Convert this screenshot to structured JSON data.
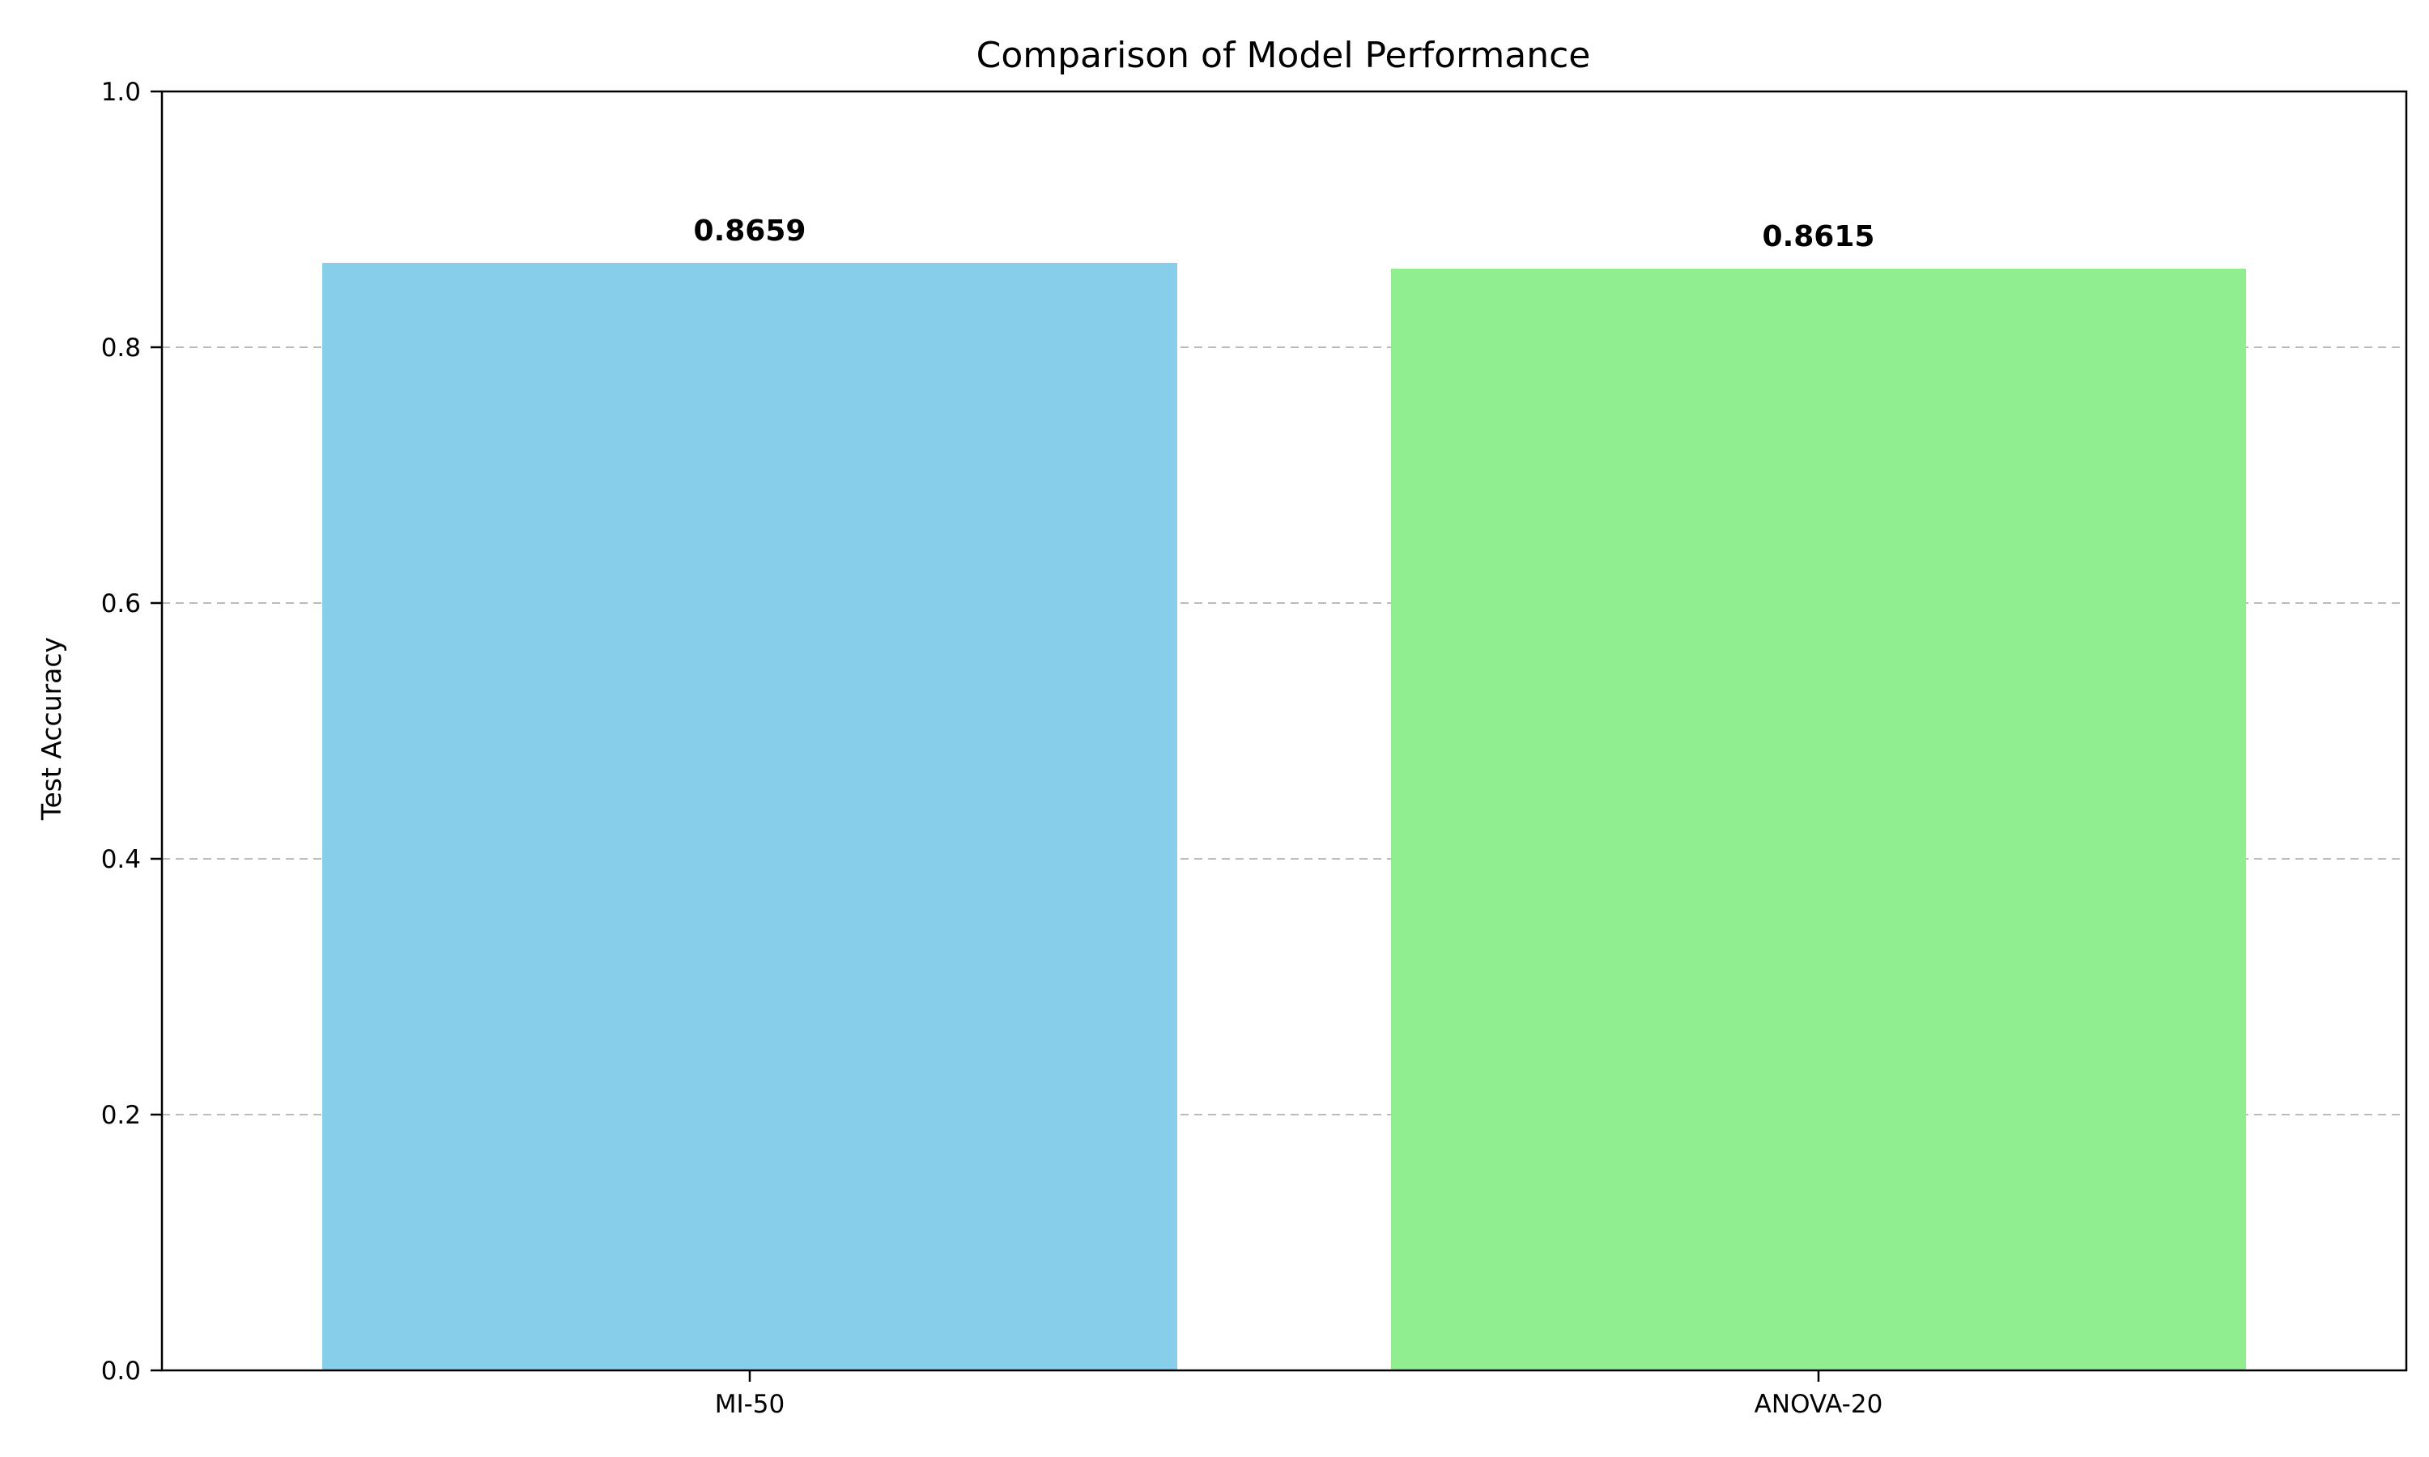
{
  "chart_data": {
    "type": "bar",
    "title": "Comparison of Model Performance",
    "xlabel": "",
    "ylabel": "Test Accuracy",
    "categories": [
      "MI-50",
      "ANOVA-20"
    ],
    "values": [
      0.8659,
      0.8615
    ],
    "value_labels": [
      "0.8659",
      "0.8615"
    ],
    "colors": [
      "#87CEEB",
      "#90EE90"
    ],
    "ylim": [
      0,
      1.0
    ],
    "yticks": [
      0.0,
      0.2,
      0.4,
      0.6,
      0.8,
      1.0
    ],
    "ytick_labels": [
      "0.0",
      "0.2",
      "0.4",
      "0.6",
      "0.8",
      "1.0"
    ],
    "grid": {
      "axis": "y",
      "style": "dashed",
      "color": "#bbbbbb"
    },
    "legend": "none"
  }
}
